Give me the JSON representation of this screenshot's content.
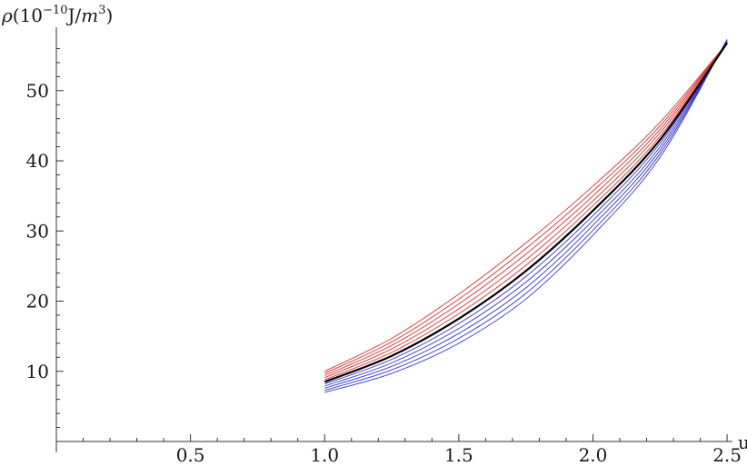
{
  "chart_data": {
    "type": "line",
    "title": "",
    "xlabel": "u",
    "ylabel": {
      "symbol": "ρ",
      "open": "(",
      "base": "10",
      "exponent": "−10",
      "unit": "J/",
      "unit_var": "m",
      "unit_exp": "3",
      "close": ")"
    },
    "xlim": [
      0,
      2.52
    ],
    "ylim": [
      0,
      58
    ],
    "x_ticks": [
      {
        "v": 0.5,
        "label": "0.5"
      },
      {
        "v": 1.0,
        "label": "1.0"
      },
      {
        "v": 1.5,
        "label": "1.5"
      },
      {
        "v": 2.0,
        "label": "2.0"
      },
      {
        "v": 2.5,
        "label": "2.5"
      }
    ],
    "y_ticks": [
      {
        "v": 10,
        "label": "10"
      },
      {
        "v": 20,
        "label": "20"
      },
      {
        "v": 30,
        "label": "30"
      },
      {
        "v": 40,
        "label": "40"
      },
      {
        "v": 50,
        "label": "50"
      }
    ],
    "grid": false,
    "legend": "none",
    "x_range": [
      1.0,
      2.5
    ],
    "colors": {
      "upper": "#e03030",
      "lower": "#3333dd",
      "central": "#000000"
    },
    "series": [
      {
        "color": "upper",
        "points": [
          [
            1.0,
            10.0
          ],
          [
            1.25,
            14.7
          ],
          [
            1.5,
            21.0
          ],
          [
            1.75,
            28.3
          ],
          [
            2.0,
            36.4
          ],
          [
            2.25,
            45.5
          ],
          [
            2.5,
            56.8
          ]
        ]
      },
      {
        "color": "upper",
        "points": [
          [
            1.0,
            9.7
          ],
          [
            1.25,
            14.2
          ],
          [
            1.5,
            20.3
          ],
          [
            1.75,
            27.5
          ],
          [
            2.0,
            35.7
          ],
          [
            2.25,
            45.0
          ],
          [
            2.5,
            56.8
          ]
        ]
      },
      {
        "color": "upper",
        "points": [
          [
            1.0,
            9.4
          ],
          [
            1.25,
            13.7
          ],
          [
            1.5,
            19.6
          ],
          [
            1.75,
            26.7
          ],
          [
            2.0,
            35.0
          ],
          [
            2.25,
            44.5
          ],
          [
            2.5,
            56.8
          ]
        ]
      },
      {
        "color": "upper",
        "points": [
          [
            1.0,
            9.1
          ],
          [
            1.25,
            13.2
          ],
          [
            1.5,
            18.9
          ],
          [
            1.75,
            25.9
          ],
          [
            2.0,
            34.3
          ],
          [
            2.25,
            44.0
          ],
          [
            2.5,
            56.8
          ]
        ]
      },
      {
        "color": "upper",
        "points": [
          [
            1.0,
            8.8
          ],
          [
            1.25,
            12.7
          ],
          [
            1.5,
            18.2
          ],
          [
            1.75,
            25.1
          ],
          [
            2.0,
            33.6
          ],
          [
            2.25,
            43.5
          ],
          [
            2.5,
            56.8
          ]
        ]
      },
      {
        "color": "central",
        "width": 2.2,
        "points": [
          [
            1.0,
            8.5
          ],
          [
            1.25,
            12.2
          ],
          [
            1.5,
            17.5
          ],
          [
            1.75,
            24.3
          ],
          [
            2.0,
            32.9
          ],
          [
            2.25,
            43.0
          ],
          [
            2.5,
            56.8
          ]
        ]
      },
      {
        "color": "lower",
        "points": [
          [
            1.0,
            8.2
          ],
          [
            1.25,
            11.7
          ],
          [
            1.5,
            16.8
          ],
          [
            1.75,
            23.5
          ],
          [
            2.0,
            32.2
          ],
          [
            2.25,
            42.5
          ],
          [
            2.5,
            56.9
          ]
        ]
      },
      {
        "color": "lower",
        "points": [
          [
            1.0,
            7.9
          ],
          [
            1.25,
            11.2
          ],
          [
            1.5,
            16.1
          ],
          [
            1.75,
            22.7
          ],
          [
            2.0,
            31.5
          ],
          [
            2.25,
            42.0
          ],
          [
            2.5,
            57.0
          ]
        ]
      },
      {
        "color": "lower",
        "points": [
          [
            1.0,
            7.6
          ],
          [
            1.25,
            10.7
          ],
          [
            1.5,
            15.4
          ],
          [
            1.75,
            21.9
          ],
          [
            2.0,
            30.8
          ],
          [
            2.25,
            41.5
          ],
          [
            2.5,
            57.1
          ]
        ]
      },
      {
        "color": "lower",
        "points": [
          [
            1.0,
            7.3
          ],
          [
            1.25,
            10.2
          ],
          [
            1.5,
            14.7
          ],
          [
            1.75,
            21.1
          ],
          [
            2.0,
            30.1
          ],
          [
            2.25,
            41.0
          ],
          [
            2.5,
            57.2
          ]
        ]
      },
      {
        "color": "lower",
        "points": [
          [
            1.0,
            7.0
          ],
          [
            1.25,
            9.7
          ],
          [
            1.5,
            14.0
          ],
          [
            1.75,
            20.3
          ],
          [
            2.0,
            29.4
          ],
          [
            2.25,
            40.5
          ],
          [
            2.5,
            57.3
          ]
        ]
      }
    ]
  }
}
